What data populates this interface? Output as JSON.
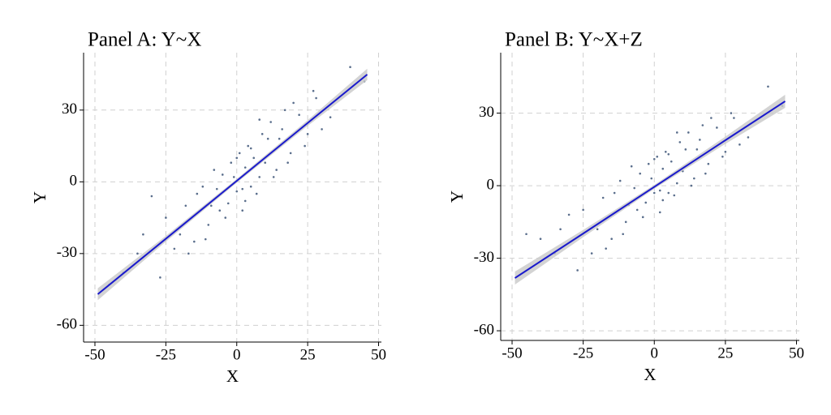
{
  "chart_data": [
    {
      "type": "scatter",
      "title": "Panel A: Y~X",
      "x_label": "X",
      "y_label": "Y",
      "xlim": [
        -54,
        51
      ],
      "ylim": [
        -67,
        54
      ],
      "xticks": [
        -50,
        -25,
        0,
        25,
        50
      ],
      "yticks": [
        -60,
        -30,
        0,
        30
      ],
      "grid": true,
      "points": {
        "color": "#5a6e8c",
        "x": [
          -30,
          -22,
          -18,
          -15,
          -12,
          -10,
          -8,
          -6,
          -5,
          -3,
          -2,
          0,
          1,
          2,
          3,
          4,
          5,
          6,
          8,
          9,
          10,
          12,
          14,
          15,
          17,
          19,
          22,
          25,
          28,
          33,
          40,
          -40,
          -35,
          -27,
          -25,
          -20,
          -14,
          -11,
          -7,
          -4,
          -1,
          0,
          2,
          5,
          7,
          11,
          13,
          16,
          18,
          20,
          24,
          27,
          30,
          45,
          -45,
          -33,
          -17,
          -9,
          3,
          8
        ],
        "y": [
          -6,
          -28,
          -10,
          -25,
          -2,
          -18,
          5,
          -12,
          3,
          -9,
          8,
          -4,
          12,
          -3,
          6,
          15,
          -2,
          10,
          2,
          20,
          8,
          25,
          5,
          18,
          30,
          12,
          28,
          20,
          35,
          27,
          48,
          -38,
          -30,
          -40,
          -15,
          -22,
          -5,
          -24,
          -3,
          -15,
          2,
          10,
          -12,
          14,
          -5,
          18,
          2,
          22,
          8,
          33,
          15,
          38,
          22,
          42,
          -43,
          -22,
          -30,
          -10,
          -8,
          26
        ]
      },
      "fit": {
        "color": "#1a1acc",
        "band_color": "#c8c8c8",
        "x": [
          -49,
          -25,
          0,
          25,
          46
        ],
        "y": [
          -47,
          -23.8,
          0.4,
          24.6,
          44.9
        ],
        "ci_lower": [
          -49.5,
          -25,
          -0.4,
          23.4,
          42.5
        ],
        "ci_upper": [
          -44.5,
          -22.6,
          1.2,
          25.8,
          47.3
        ]
      }
    },
    {
      "type": "scatter",
      "title": "Panel B: Y~X+Z",
      "x_label": "X",
      "y_label": "Y",
      "xlim": [
        -54,
        51
      ],
      "ylim": [
        -64,
        55
      ],
      "xticks": [
        -50,
        -25,
        0,
        25,
        50
      ],
      "yticks": [
        -60,
        -30,
        0,
        30
      ],
      "grid": true,
      "points": {
        "color": "#5a6e8c",
        "x": [
          -30,
          -22,
          -18,
          -15,
          -12,
          -10,
          -8,
          -6,
          -5,
          -3,
          -2,
          0,
          1,
          2,
          3,
          4,
          5,
          6,
          8,
          9,
          10,
          12,
          14,
          15,
          17,
          19,
          22,
          25,
          28,
          33,
          40,
          -40,
          -35,
          -27,
          -25,
          -20,
          -14,
          -11,
          -7,
          -4,
          -1,
          0,
          2,
          5,
          7,
          11,
          13,
          16,
          18,
          20,
          24,
          27,
          30,
          45,
          -45,
          -33,
          -17,
          -9,
          3,
          8
        ],
        "y": [
          -12,
          -28,
          -5,
          -22,
          2,
          -15,
          8,
          -10,
          5,
          -7,
          9,
          -3,
          12,
          -2,
          7,
          14,
          -3,
          10,
          1,
          18,
          6,
          22,
          3,
          15,
          25,
          9,
          24,
          14,
          28,
          20,
          41,
          -22,
          -28,
          -35,
          -10,
          -18,
          -3,
          -20,
          -1,
          -13,
          3,
          11,
          -11,
          13,
          -4,
          15,
          0,
          19,
          5,
          28,
          12,
          30,
          17,
          33,
          -20,
          -18,
          -26,
          -8,
          -6,
          22
        ]
      },
      "fit": {
        "color": "#1a1acc",
        "band_color": "#c8c8c8",
        "x": [
          -49,
          -25,
          0,
          25,
          46
        ],
        "y": [
          -38.2,
          -19.8,
          -0.5,
          18.8,
          34.9
        ],
        "ci_lower": [
          -40.9,
          -21.3,
          -1.3,
          17.3,
          32.2
        ],
        "ci_upper": [
          -35.5,
          -18.3,
          0.3,
          20.3,
          37.6
        ]
      }
    }
  ]
}
